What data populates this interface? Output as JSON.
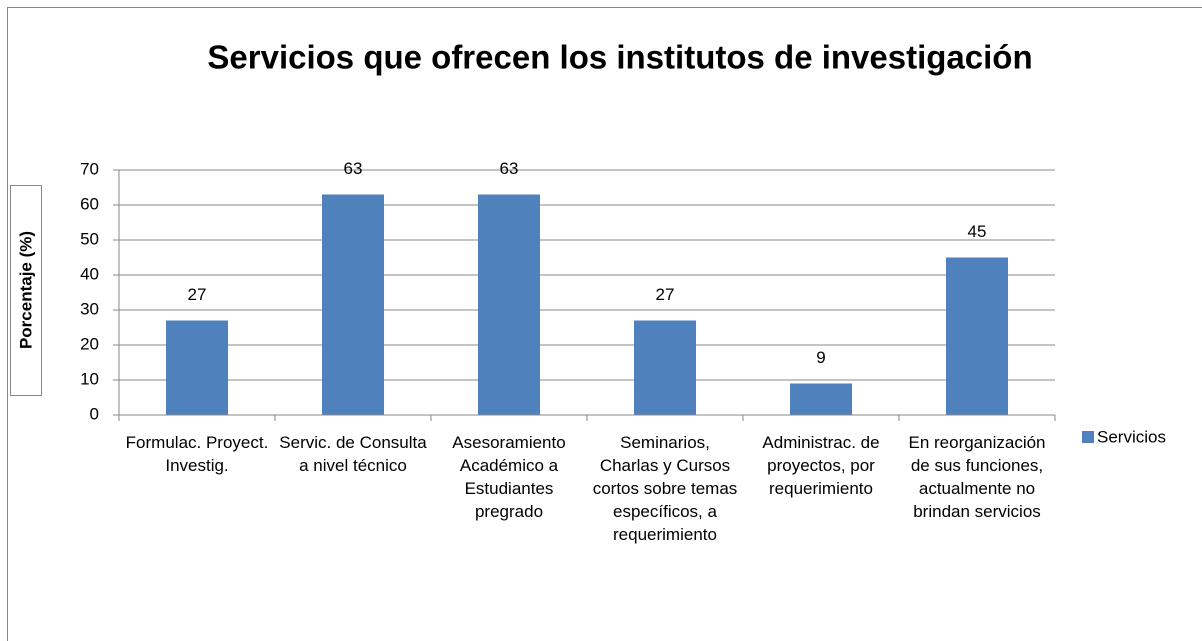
{
  "chart_data": {
    "type": "bar",
    "title": "Servicios que ofrecen los institutos de investigación",
    "y_label": "Porcentaje (%)",
    "categories": [
      "Formulac. Proyect. Investig.",
      "Servic. de Consulta a nivel técnico",
      "Asesoramiento Académico a Estudiantes pregrado",
      "Seminarios, Charlas y Cursos cortos sobre temas específicos, a requerimiento",
      "Administrac. de proyectos, por requerimiento",
      "En reorganización de sus funciones, actualmente no brindan servicios"
    ],
    "series": [
      {
        "name": "Servicios",
        "color": "#4f81bd",
        "values": [
          27,
          63,
          63,
          27,
          9,
          45
        ]
      }
    ],
    "ylim": [
      0,
      70
    ],
    "yticks": [
      0,
      10,
      20,
      30,
      40,
      50,
      60,
      70
    ],
    "grid": true,
    "legend": "right"
  }
}
